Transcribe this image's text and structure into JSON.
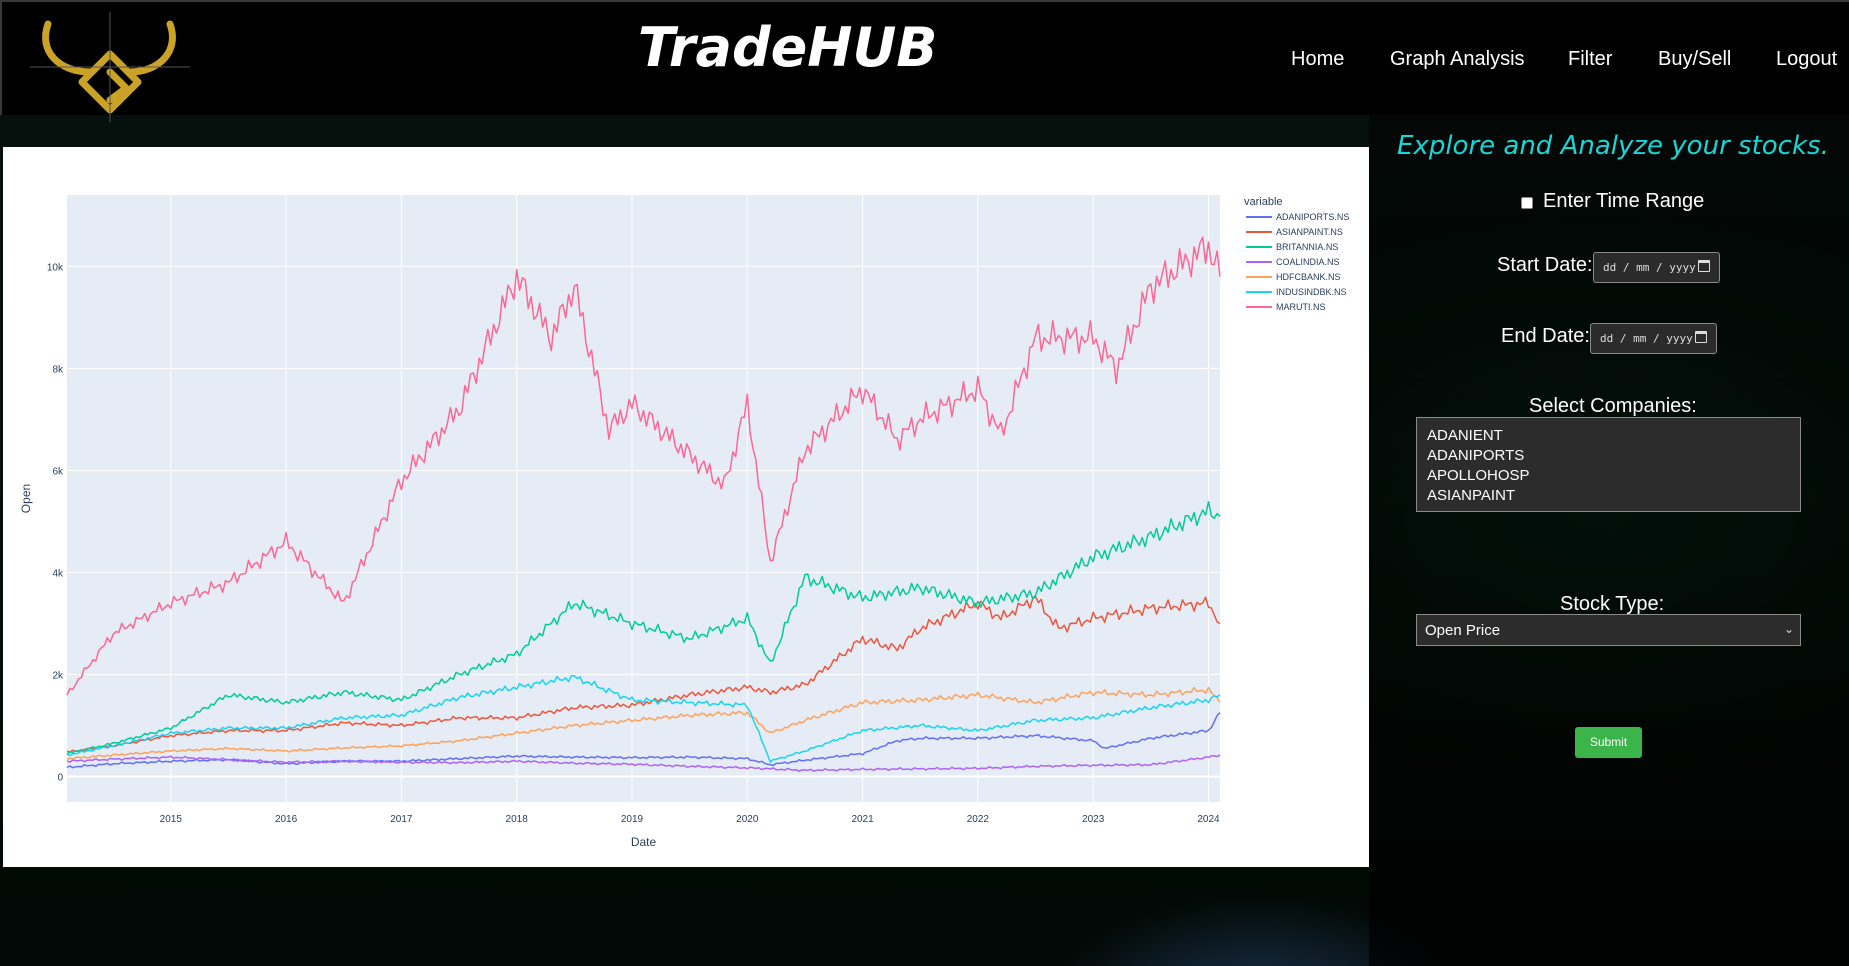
{
  "brand": "TradeHUB",
  "nav": [
    "Home",
    "Graph Analysis",
    "Filter",
    "Buy/Sell",
    "Logout"
  ],
  "form": {
    "headline": "Explore and Analyze your stocks.",
    "time_range_label": "Enter Time Range",
    "start_label": "Start Date:",
    "end_label": "End Date:",
    "date_placeholder": "dd / mm / yyyy",
    "companies_label": "Select Companies:",
    "companies": [
      "ADANIENT",
      "ADANIPORTS",
      "APOLLOHOSP",
      "ASIANPAINT"
    ],
    "stock_type_label": "Stock Type:",
    "stock_type_value": "Open Price",
    "submit_label": "Submit"
  },
  "colors": {
    "accent": "#19d6d6",
    "submit": "#3bb44a",
    "logo_gold": "#c9a227"
  },
  "chart_data": {
    "type": "line",
    "xlabel": "Date",
    "ylabel": "Open",
    "legend_title": "variable",
    "legend_position": "right",
    "grid": true,
    "xlim": [
      2014.1,
      2024.1
    ],
    "ylim": [
      -500,
      11400
    ],
    "x_ticks": [
      2015,
      2016,
      2017,
      2018,
      2019,
      2020,
      2021,
      2022,
      2023,
      2024
    ],
    "y_ticks": [
      0,
      2000,
      4000,
      6000,
      8000,
      10000
    ],
    "y_tick_labels": [
      "0",
      "2k",
      "4k",
      "6k",
      "8k",
      "10k"
    ],
    "series": [
      {
        "name": "ADANIPORTS.NS",
        "color": "#636efa",
        "x": [
          2014.1,
          2014.5,
          2015,
          2015.5,
          2016,
          2016.5,
          2017,
          2017.5,
          2018,
          2018.5,
          2019,
          2019.5,
          2020,
          2020.2,
          2020.5,
          2021,
          2021.3,
          2021.5,
          2022,
          2022.5,
          2023,
          2023.1,
          2023.5,
          2024,
          2024.1
        ],
        "values": [
          180,
          250,
          300,
          330,
          250,
          300,
          300,
          350,
          400,
          380,
          370,
          380,
          350,
          230,
          320,
          450,
          700,
          750,
          750,
          800,
          700,
          550,
          750,
          900,
          1250
        ]
      },
      {
        "name": "ASIANPAINT.NS",
        "color": "#ef553b",
        "x": [
          2014.1,
          2014.5,
          2015,
          2015.5,
          2016,
          2016.5,
          2017,
          2017.5,
          2018,
          2018.5,
          2019,
          2019.5,
          2020,
          2020.2,
          2020.5,
          2021,
          2021.3,
          2021.5,
          2022,
          2022.2,
          2022.5,
          2022.7,
          2023,
          2023.5,
          2024,
          2024.1
        ],
        "values": [
          480,
          600,
          800,
          900,
          900,
          1050,
          1000,
          1150,
          1150,
          1350,
          1400,
          1600,
          1750,
          1650,
          1800,
          2700,
          2500,
          2900,
          3400,
          3100,
          3500,
          2900,
          3100,
          3300,
          3400,
          3000
        ]
      },
      {
        "name": "BRITANNIA.NS",
        "color": "#00cc96",
        "x": [
          2014.1,
          2014.5,
          2015,
          2015.5,
          2016,
          2016.5,
          2017,
          2017.5,
          2018,
          2018.5,
          2019,
          2019.5,
          2020,
          2020.2,
          2020.5,
          2021,
          2021.5,
          2022,
          2022.5,
          2023,
          2023.5,
          2024,
          2024.1
        ],
        "values": [
          450,
          650,
          950,
          1600,
          1450,
          1650,
          1500,
          2000,
          2400,
          3400,
          3000,
          2700,
          3100,
          2200,
          3900,
          3500,
          3700,
          3400,
          3600,
          4300,
          4700,
          5200,
          5100
        ]
      },
      {
        "name": "COALINDIA.NS",
        "color": "#ab63fa",
        "x": [
          2014.1,
          2014.5,
          2015,
          2015.5,
          2016,
          2016.5,
          2017,
          2017.5,
          2018,
          2018.5,
          2019,
          2019.5,
          2020,
          2020.5,
          2021,
          2021.5,
          2022,
          2022.5,
          2023,
          2023.5,
          2024,
          2024.1
        ],
        "values": [
          300,
          340,
          380,
          330,
          280,
          300,
          280,
          270,
          300,
          260,
          240,
          200,
          170,
          120,
          140,
          150,
          160,
          200,
          220,
          230,
          380,
          420
        ]
      },
      {
        "name": "HDFCBANK.NS",
        "color": "#ffa15a",
        "x": [
          2014.1,
          2014.5,
          2015,
          2015.5,
          2016,
          2016.5,
          2017,
          2017.5,
          2018,
          2018.5,
          2019,
          2019.5,
          2020,
          2020.2,
          2020.5,
          2021,
          2021.5,
          2022,
          2022.5,
          2023,
          2023.5,
          2024,
          2024.1
        ],
        "values": [
          350,
          420,
          500,
          550,
          500,
          560,
          600,
          700,
          850,
          1000,
          1100,
          1200,
          1250,
          850,
          1100,
          1450,
          1500,
          1600,
          1450,
          1650,
          1600,
          1700,
          1450
        ]
      },
      {
        "name": "INDUSINDBK.NS",
        "color": "#19d3f3",
        "x": [
          2014.1,
          2014.5,
          2015,
          2015.5,
          2016,
          2016.5,
          2017,
          2017.5,
          2018,
          2018.5,
          2019,
          2019.5,
          2020,
          2020.2,
          2020.5,
          2021,
          2021.5,
          2022,
          2022.5,
          2023,
          2023.5,
          2024,
          2024.1
        ],
        "values": [
          420,
          600,
          850,
          950,
          950,
          1150,
          1200,
          1550,
          1750,
          1950,
          1500,
          1450,
          1400,
          300,
          500,
          900,
          1000,
          900,
          1100,
          1150,
          1350,
          1500,
          1600
        ]
      },
      {
        "name": "MARUTI.NS",
        "color": "#ff6692",
        "x": [
          2014.1,
          2014.5,
          2015,
          2015.5,
          2016,
          2016.5,
          2017,
          2017.5,
          2018,
          2018.3,
          2018.5,
          2018.8,
          2019,
          2019.5,
          2019.8,
          2020,
          2020.2,
          2020.5,
          2021,
          2021.3,
          2021.5,
          2022,
          2022.2,
          2022.5,
          2023,
          2023.2,
          2023.5,
          2024,
          2024.1
        ],
        "values": [
          1600,
          2800,
          3400,
          3800,
          4600,
          3400,
          5800,
          7200,
          9800,
          8600,
          9600,
          6800,
          7300,
          6300,
          5700,
          7300,
          4200,
          6400,
          7600,
          6600,
          7000,
          7600,
          6700,
          8600,
          8600,
          8000,
          9600,
          10400,
          9800
        ]
      }
    ]
  }
}
